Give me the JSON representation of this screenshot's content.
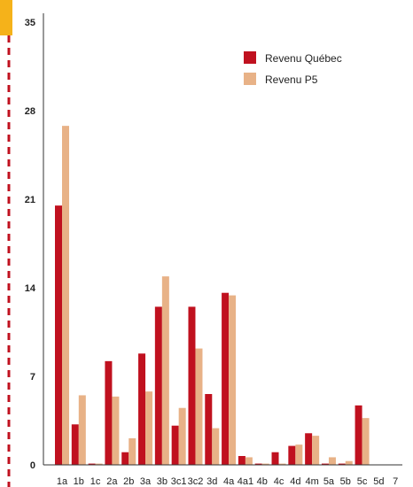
{
  "chart_data": {
    "type": "bar",
    "categories": [
      "1a",
      "1b",
      "1c",
      "2a",
      "2b",
      "3a",
      "3b",
      "3c1",
      "3c2",
      "3d",
      "4a",
      "4a1",
      "4b",
      "4c",
      "4d",
      "4m",
      "5a",
      "5b",
      "5c",
      "5d",
      "7"
    ],
    "series": [
      {
        "name": "Revenu Québec",
        "color": "#c0111f",
        "values": [
          20.5,
          3.2,
          0.1,
          8.2,
          1.0,
          8.8,
          12.5,
          3.1,
          12.5,
          5.6,
          13.6,
          0.7,
          0.1,
          1.0,
          1.5,
          2.5,
          0.1,
          0.1,
          4.7,
          0.0,
          0.0
        ]
      },
      {
        "name": "Revenu P5",
        "color": "#e8b287",
        "values": [
          26.8,
          5.5,
          0.1,
          5.4,
          2.1,
          5.8,
          14.9,
          4.5,
          9.2,
          2.9,
          13.4,
          0.6,
          0.1,
          0.1,
          1.6,
          2.3,
          0.6,
          0.3,
          3.7,
          0.0,
          0.0
        ]
      }
    ],
    "ylim": [
      0,
      35
    ],
    "yticks": [
      0,
      7,
      14,
      21,
      28,
      35
    ],
    "legend_position": "top-right",
    "grid": false
  }
}
